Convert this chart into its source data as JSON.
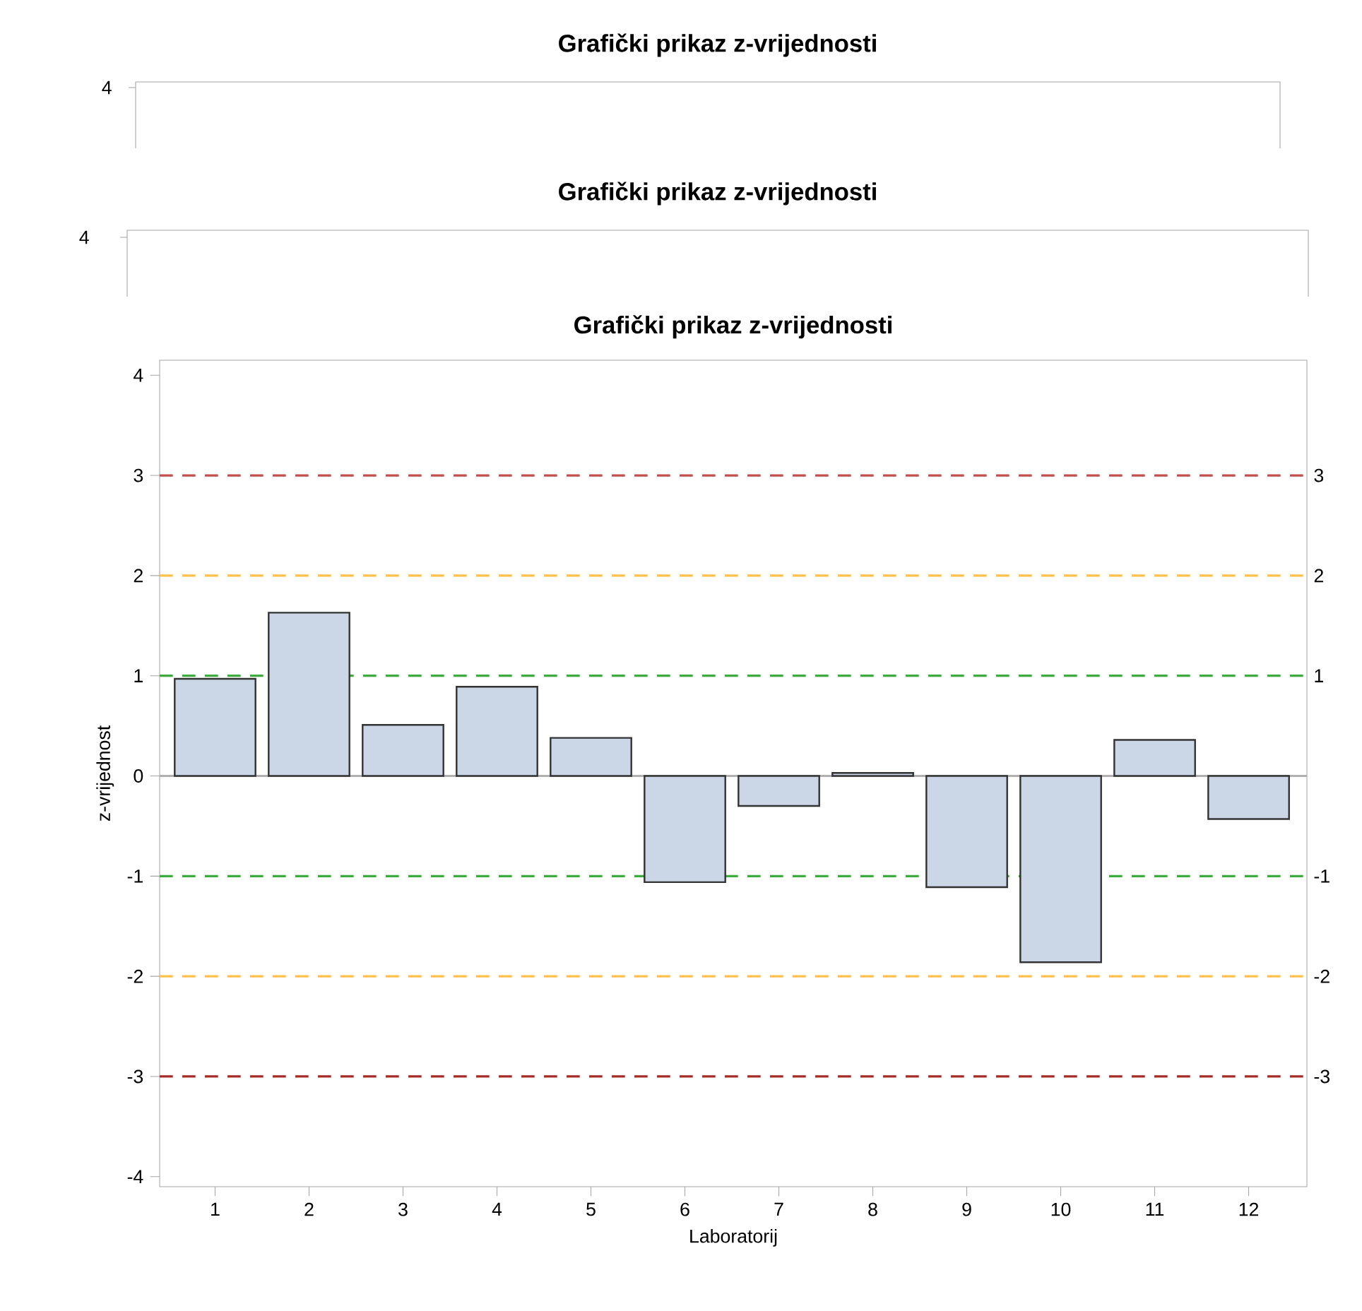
{
  "chart_data": {
    "type": "bar",
    "title": "Grafički prikaz z-vrijednosti",
    "xlabel": "Laboratorij",
    "ylabel": "z-vrijednost",
    "categories": [
      "1",
      "2",
      "3",
      "4",
      "5",
      "6",
      "7",
      "8",
      "9",
      "10",
      "11",
      "12"
    ],
    "values": [
      0.97,
      1.63,
      0.51,
      0.89,
      0.38,
      -1.06,
      -0.3,
      0.03,
      -1.11,
      -1.86,
      0.36,
      -0.43
    ],
    "color": "#cbd6e6",
    "ylim": [
      -4.1,
      4.15
    ],
    "yticks": [
      -4,
      -3,
      -2,
      -1,
      0,
      1,
      2,
      3,
      4
    ],
    "grid": false,
    "ref_lines": [
      {
        "axis": "y",
        "value": 3,
        "label": "3",
        "color": "#c0504d",
        "line_style": "dashed"
      },
      {
        "axis": "y",
        "value": 2,
        "label": "2",
        "color": "#ffc04c",
        "line_style": "dashed"
      },
      {
        "axis": "y",
        "value": 1,
        "label": "1",
        "color": "#3faa3f",
        "line_style": "dashed"
      },
      {
        "axis": "y",
        "value": 0,
        "label": null,
        "color": "#b0b0b0",
        "line_style": "solid"
      },
      {
        "axis": "y",
        "value": -1,
        "label": "-1",
        "color": "#3faa3f",
        "line_style": "dashed"
      },
      {
        "axis": "y",
        "value": -2,
        "label": "-2",
        "color": "#ffc04c",
        "line_style": "dashed"
      },
      {
        "axis": "y",
        "value": -3,
        "label": "-3",
        "color": "#a52a2a",
        "line_style": "dashed"
      }
    ],
    "annotations": [
      "Grafički prikaz z-vrijednosti",
      "4",
      "Grafički prikaz z-vrijednosti",
      "4"
    ]
  }
}
